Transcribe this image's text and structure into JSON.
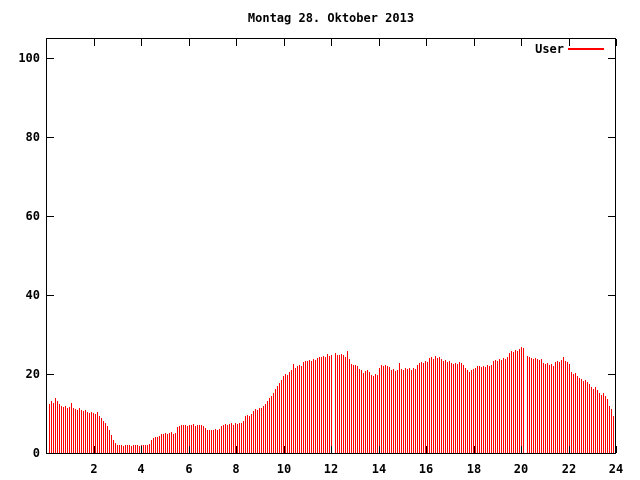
{
  "chart_data": {
    "type": "bar",
    "title": "Montag 28. Oktober 2013",
    "legend_label": "User",
    "legend_position": "top-right-inside",
    "series_color": "#ff0000",
    "axis_color": "#000000",
    "background_color": "#ffffff",
    "grid": false,
    "x_axis": {
      "min": 0,
      "max": 24,
      "unit": "hour-of-day",
      "ticks": [
        2,
        4,
        6,
        8,
        10,
        12,
        14,
        16,
        18,
        20,
        22,
        24
      ]
    },
    "y_axis": {
      "min": 0,
      "max": 100,
      "ticks": [
        0,
        20,
        40,
        60,
        80,
        100
      ]
    },
    "sample_interval_minutes": 5,
    "missing_samples_are_null": true,
    "values": [
      12.3,
      13.1,
      12.7,
      14.0,
      13.2,
      12.4,
      11.9,
      11.6,
      11.8,
      11.4,
      11.7,
      12.6,
      11.5,
      11.2,
      11.0,
      11.3,
      10.9,
      10.6,
      10.8,
      10.4,
      10.2,
      10.5,
      10.1,
      9.8,
      10.3,
      9.4,
      8.9,
      8.2,
      7.6,
      6.8,
      5.8,
      4.6,
      3.4,
      2.6,
      2.1,
      1.9,
      2.0,
      1.8,
      2.1,
      1.9,
      2.0,
      1.8,
      2.0,
      1.9,
      2.1,
      1.8,
      2.0,
      1.9,
      2.1,
      2.0,
      2.2,
      3.3,
      3.8,
      4.1,
      4.0,
      4.4,
      4.7,
      4.9,
      5.1,
      4.8,
      5.0,
      5.2,
      4.9,
      5.1,
      6.6,
      6.9,
      7.1,
      7.0,
      7.2,
      6.9,
      7.1,
      7.0,
      7.3,
      6.9,
      7.1,
      7.0,
      7.2,
      6.8,
      6.4,
      5.9,
      5.7,
      5.9,
      5.8,
      6.0,
      5.8,
      6.1,
      6.9,
      7.2,
      7.4,
      7.1,
      7.3,
      7.5,
      7.2,
      7.6,
      7.4,
      7.7,
      7.5,
      8.2,
      9.3,
      9.6,
      9.4,
      9.8,
      10.7,
      11.2,
      11.0,
      11.5,
      11.3,
      11.8,
      12.4,
      13.2,
      13.8,
      14.5,
      15.2,
      16.1,
      17.0,
      17.8,
      18.6,
      19.4,
      20.1,
      19.8,
      20.4,
      20.9,
      22.6,
      21.6,
      21.9,
      22.3,
      22.0,
      23.1,
      23.4,
      23.2,
      23.6,
      23.3,
      23.7,
      23.5,
      24.1,
      24.4,
      24.2,
      24.6,
      24.3,
      25.0,
      24.5,
      24.8,
      null,
      25.2,
      24.7,
      24.9,
      25.1,
      24.8,
      24.4,
      25.9,
      23.9,
      22.5,
      22.2,
      22.4,
      21.9,
      21.2,
      20.9,
      20.3,
      20.7,
      21.0,
      20.5,
      19.8,
      19.5,
      20.0,
      19.7,
      21.4,
      22.3,
      22.0,
      22.4,
      22.1,
      21.7,
      20.9,
      21.2,
      20.8,
      21.1,
      22.9,
      21.3,
      21.0,
      21.4,
      21.2,
      21.5,
      21.1,
      21.4,
      21.2,
      22.4,
      22.8,
      23.1,
      22.9,
      23.3,
      23.0,
      24.0,
      24.3,
      23.9,
      24.5,
      24.1,
      24.4,
      23.8,
      23.2,
      23.5,
      23.1,
      23.4,
      22.8,
      22.5,
      22.9,
      22.6,
      23.0,
      22.7,
      22.4,
      21.5,
      20.9,
      20.6,
      20.9,
      21.2,
      21.6,
      21.9,
      22.1,
      21.8,
      22.0,
      21.7,
      22.2,
      22.0,
      22.4,
      23.2,
      23.6,
      23.3,
      23.8,
      23.5,
      24.0,
      23.7,
      24.2,
      25.3,
      25.7,
      25.5,
      26.0,
      25.8,
      26.3,
      26.8,
      26.5,
      null,
      24.6,
      24.4,
      24.0,
      23.7,
      24.1,
      23.8,
      23.5,
      23.9,
      22.8,
      22.5,
      22.7,
      22.3,
      22.6,
      22.1,
      23.0,
      23.3,
      23.1,
      23.5,
      24.2,
      23.4,
      23.0,
      22.6,
      20.4,
      19.9,
      20.2,
      19.6,
      19.1,
      18.7,
      18.3,
      18.6,
      17.9,
      17.4,
      16.8,
      16.3,
      16.6,
      15.9,
      15.3,
      14.8,
      15.1,
      14.4,
      13.6,
      12.0,
      11.2,
      9.3
    ]
  }
}
